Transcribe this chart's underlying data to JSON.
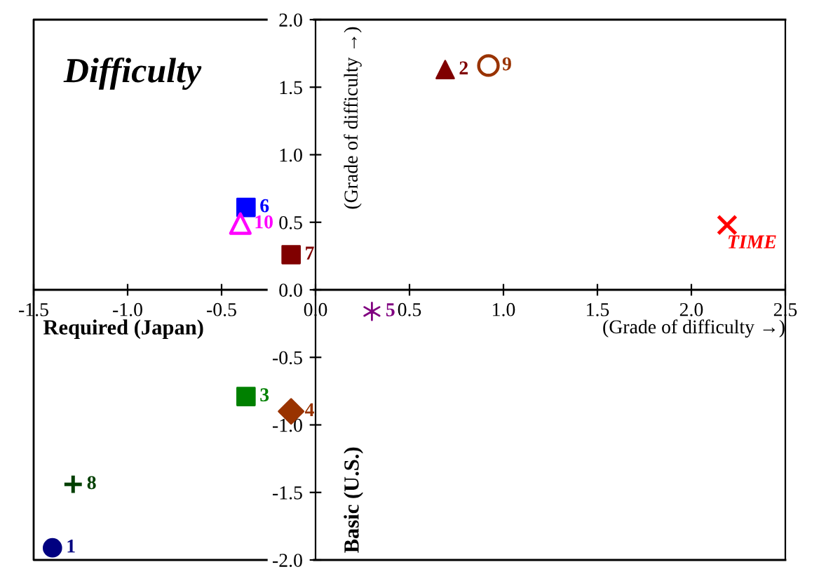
{
  "chart_data": {
    "type": "scatter",
    "title": "Difficulty",
    "xlabel": "(Grade of difficulty →)",
    "ylabel": "(Grade of difficulty →)",
    "annotations": [
      "Required (Japan)",
      "Basic (U.S.)"
    ],
    "xlim": [
      -1.5,
      2.5
    ],
    "ylim": [
      -2,
      2
    ],
    "xticks": [
      {
        "value": -1.5,
        "label": "-1.5"
      },
      {
        "value": -1,
        "label": "-1.0"
      },
      {
        "value": -0.5,
        "label": "-0.5"
      },
      {
        "value": 0,
        "label": "0.0"
      },
      {
        "value": 0.5,
        "label": "0.5"
      },
      {
        "value": 1,
        "label": "1.0"
      },
      {
        "value": 1.5,
        "label": "1.5"
      },
      {
        "value": 2,
        "label": "2.0"
      },
      {
        "value": 2.5,
        "label": "2.5"
      }
    ],
    "yticks": [
      {
        "value": -2,
        "label": "-2.0"
      },
      {
        "value": -1.5,
        "label": "-1.5"
      },
      {
        "value": -1,
        "label": "-1.0"
      },
      {
        "value": -0.5,
        "label": "-0.5"
      },
      {
        "value": 0,
        "label": "0.0"
      },
      {
        "value": 0.5,
        "label": "0.5"
      },
      {
        "value": 1,
        "label": "1.0"
      },
      {
        "value": 1.5,
        "label": "1.5"
      },
      {
        "value": 2,
        "label": "2.0"
      }
    ],
    "grid": false,
    "legend": false,
    "series": [
      {
        "name": "1",
        "color": "#000080",
        "marker": "circle",
        "x": [
          -1.4
        ],
        "values": [
          -1.91
        ]
      },
      {
        "name": "2",
        "color": "#800000",
        "marker": "triangle",
        "x": [
          0.69
        ],
        "values": [
          1.63
        ]
      },
      {
        "name": "3",
        "color": "#008000",
        "marker": "square",
        "x": [
          -0.37
        ],
        "values": [
          -0.79
        ]
      },
      {
        "name": "4",
        "color": "#993300",
        "marker": "diamond",
        "x": [
          -0.13
        ],
        "values": [
          -0.9
        ]
      },
      {
        "name": "5",
        "color": "#800080",
        "marker": "cross",
        "x": [
          0.3
        ],
        "values": [
          -0.16
        ]
      },
      {
        "name": "6",
        "color": "#0000ff",
        "marker": "square",
        "x": [
          -0.37
        ],
        "values": [
          0.61
        ]
      },
      {
        "name": "7",
        "color": "#800000",
        "marker": "square",
        "x": [
          -0.13
        ],
        "values": [
          0.26
        ]
      },
      {
        "name": "8",
        "color": "#004000",
        "marker": "plus",
        "x": [
          -1.29
        ],
        "values": [
          -1.44
        ]
      },
      {
        "name": "9",
        "color": "#993300",
        "marker": "circle_open",
        "x": [
          0.92
        ],
        "values": [
          1.66
        ]
      },
      {
        "name": "10",
        "color": "#ff00ff",
        "marker": "triangle_open",
        "x": [
          -0.4
        ],
        "values": [
          0.49
        ]
      },
      {
        "name": "TIME",
        "color": "#ff0000",
        "marker": "x",
        "x": [
          2.19
        ],
        "values": [
          0.48
        ]
      }
    ]
  }
}
